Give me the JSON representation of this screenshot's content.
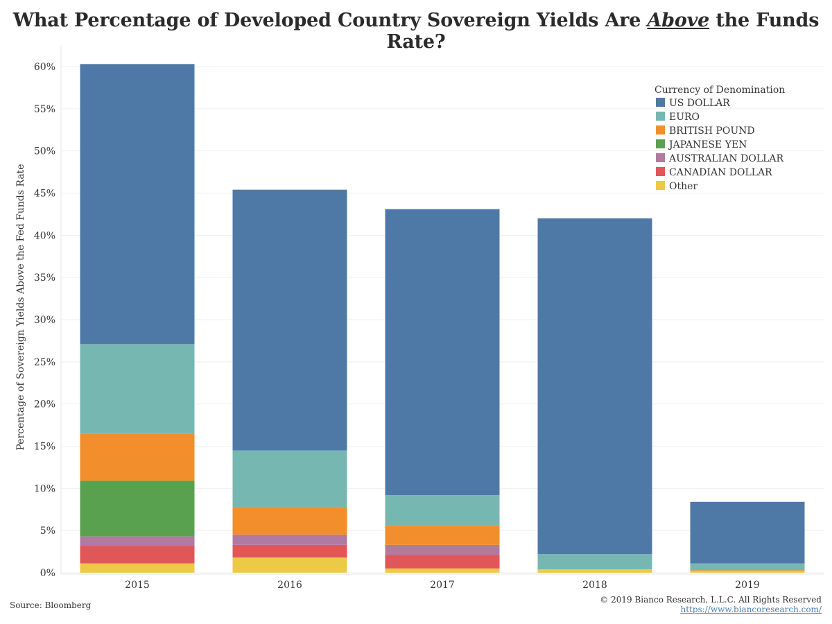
{
  "header": {
    "title_pre": "What Percentage of Developed Country Sovereign Yields Are ",
    "title_em": "Above",
    "title_post": " the Funds Rate?"
  },
  "footer": {
    "source": "Source: Bloomberg",
    "copyright": "© 2019 Bianco Research, L.L.C. All Rights Reserved",
    "url": "https://www.biancoresearch.com/"
  },
  "chart_data": {
    "type": "bar",
    "stacked": true,
    "title": "What Percentage of Developed Country Sovereign Yields Are Above the Funds Rate?",
    "ylabel": "Percentage of Sovereign Yields Above the Fed Funds Rate",
    "xlabel": "",
    "ylim": [
      0,
      60
    ],
    "yticks": [
      0,
      5,
      10,
      15,
      20,
      25,
      30,
      35,
      40,
      45,
      50,
      55,
      60
    ],
    "ytick_suffix": "%",
    "grid": true,
    "legend_title": "Currency of Denomination",
    "legend_position": "top-right",
    "categories": [
      "2015",
      "2016",
      "2017",
      "2018",
      "2019"
    ],
    "series": [
      {
        "name": "Other",
        "color": "#EDC948",
        "values": [
          1.1,
          1.8,
          0.5,
          0.4,
          0.2
        ]
      },
      {
        "name": "CANADIAN DOLLAR",
        "color": "#E15759",
        "values": [
          2.1,
          1.5,
          1.6,
          0,
          0
        ]
      },
      {
        "name": "AUSTRALIAN DOLLAR",
        "color": "#B07AA1",
        "values": [
          1.1,
          1.2,
          1.2,
          0,
          0
        ]
      },
      {
        "name": "JAPANESE YEN",
        "color": "#59A14F",
        "values": [
          6.6,
          0,
          0,
          0,
          0
        ]
      },
      {
        "name": "BRITISH POUND",
        "color": "#F28E2B",
        "values": [
          5.6,
          3.3,
          2.3,
          0,
          0.1
        ]
      },
      {
        "name": "EURO",
        "color": "#76B7B2",
        "values": [
          10.6,
          6.7,
          3.6,
          1.8,
          0.8
        ]
      },
      {
        "name": "US DOLLAR",
        "color": "#4E79A7",
        "values": [
          33.2,
          30.9,
          33.9,
          39.8,
          7.3
        ]
      }
    ],
    "legend_order": [
      "US DOLLAR",
      "EURO",
      "BRITISH POUND",
      "JAPANESE YEN",
      "AUSTRALIAN DOLLAR",
      "CANADIAN DOLLAR",
      "Other"
    ]
  }
}
